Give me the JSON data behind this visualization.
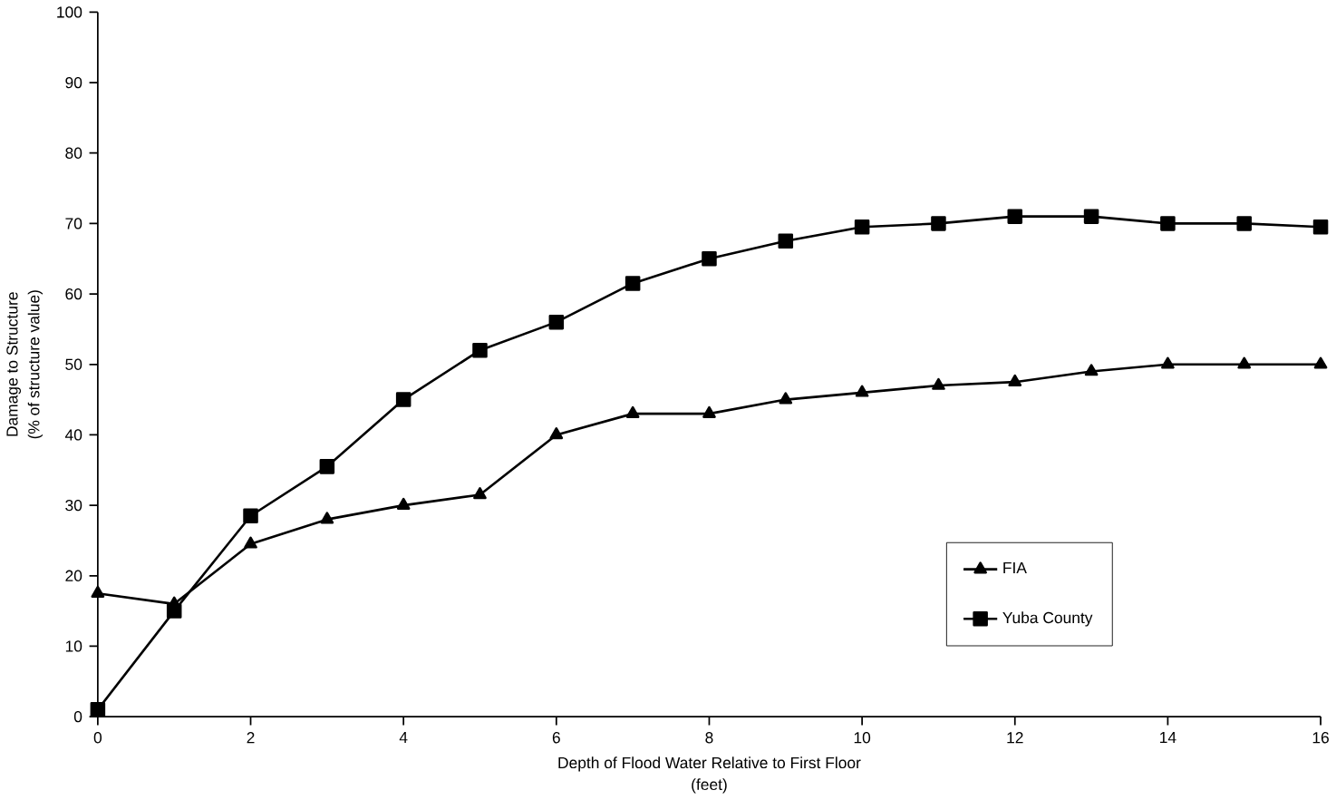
{
  "chart_data": {
    "type": "line",
    "xlabel": "Depth of Flood Water Relative to First Floor\n(feet)",
    "ylabel": "Damage to Structure\n(% of structure value)",
    "x": [
      0,
      1,
      2,
      3,
      4,
      5,
      6,
      7,
      8,
      9,
      10,
      11,
      12,
      13,
      14,
      15,
      16
    ],
    "series": [
      {
        "name": "FIA",
        "color": "#000000",
        "marker": "triangle",
        "values": [
          17.5,
          16,
          24.5,
          28,
          30,
          31.5,
          40,
          43,
          43,
          45,
          46,
          47,
          47.5,
          49,
          50,
          50,
          50
        ]
      },
      {
        "name": "Yuba County",
        "color": "#000000",
        "marker": "square",
        "values": [
          1,
          15,
          28.5,
          35.5,
          45,
          52,
          56,
          61.5,
          65,
          67.5,
          69.5,
          70,
          71,
          71,
          70,
          70,
          69.5
        ]
      }
    ],
    "xlim": [
      0,
      16
    ],
    "ylim": [
      0,
      100
    ],
    "xticks": [
      0,
      2,
      4,
      6,
      8,
      10,
      12,
      14,
      16
    ],
    "yticks": [
      0,
      10,
      20,
      30,
      40,
      50,
      60,
      70,
      80,
      90,
      100
    ],
    "grid": false,
    "legend": "bottom right",
    "line_style": "solid"
  }
}
